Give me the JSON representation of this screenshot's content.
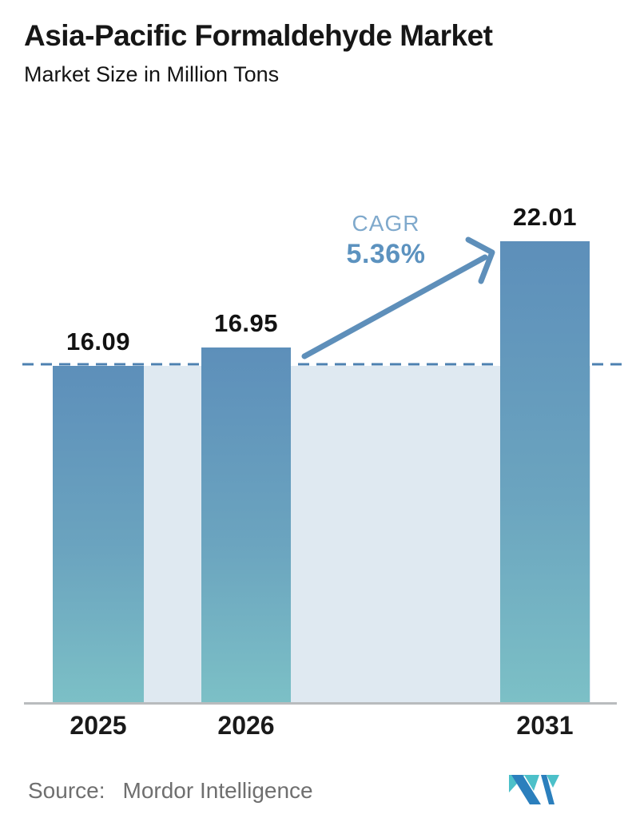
{
  "header": {
    "title": "Asia-Pacific Formaldehyde Market",
    "subtitle": "Market Size in Million Tons"
  },
  "chart_data": {
    "type": "bar",
    "title": "Asia-Pacific Formaldehyde Market",
    "ylabel": "Market Size in Million Tons",
    "categories": [
      "2025",
      "2026",
      "2031"
    ],
    "values": [
      16.09,
      16.95,
      22.01
    ],
    "value_labels": [
      "16.09",
      "16.95",
      "22.01"
    ],
    "ylim": [
      0,
      22.5
    ],
    "grid": false,
    "legend": false,
    "reference_line": {
      "style": "dashed",
      "at_value": 16.09
    },
    "annotation": {
      "label": "CAGR",
      "value": "5.36%"
    }
  },
  "cagr": {
    "label": "CAGR",
    "value": "5.36%"
  },
  "footer": {
    "source_label": "Source:",
    "source_name": "Mordor Intelligence",
    "logo": "mordor-intelligence-logo"
  },
  "colors": {
    "bar_top": "#5d8fba",
    "bar_bottom": "#7cc0c6",
    "band": "#dfe9f1",
    "dashed_line": "#4d81b1",
    "arrow": "#5e8fba",
    "cagr_label": "#7fa9cc",
    "cagr_value": "#5c92bf",
    "axis": "#b9bcbe",
    "text": "#161616",
    "source_text": "#6f6f6f",
    "logo_teal": "#4cc0c9",
    "logo_blue": "#2b7fbd"
  }
}
